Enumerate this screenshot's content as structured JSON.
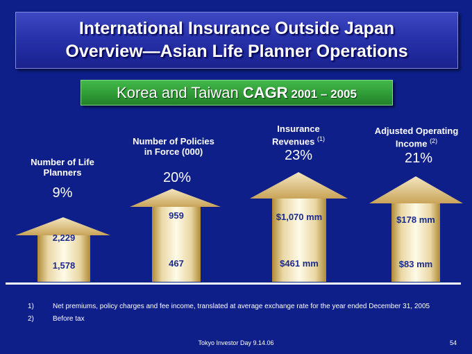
{
  "slide": {
    "title_line1": "International Insurance Outside Japan",
    "title_line2": "Overview—Asian Life Planner Operations",
    "subtitle_normal": "Korea and Taiwan ",
    "subtitle_bold": "CAGR",
    "subtitle_years": " 2001 – 2005"
  },
  "columns": [
    {
      "label_line1": "Number of Life",
      "label_line2": "Planners",
      "label_sup": "",
      "cagr": "9%",
      "value_2005": "2,229",
      "value_2001": "1,578"
    },
    {
      "label_line1": "Number of Policies",
      "label_line2": "in Force (000)",
      "label_sup": "",
      "cagr": "20%",
      "value_2005": "959",
      "value_2001": "467"
    },
    {
      "label_line1": "Insurance",
      "label_line2": "Revenues",
      "label_sup": "(1)",
      "cagr": "23%",
      "value_2005": "$1,070 mm",
      "value_2001": "$461 mm"
    },
    {
      "label_line1": "Adjusted Operating",
      "label_line2": "Income",
      "label_sup": "(2)",
      "cagr": "21%",
      "value_2005": "$178 mm",
      "value_2001": "$83 mm"
    }
  ],
  "footnotes": [
    {
      "num": "1)",
      "text": "Net premiums, policy charges and fee income, translated at average exchange rate for the year ended December 31, 2005"
    },
    {
      "num": "2)",
      "text": "Before tax"
    }
  ],
  "footer": {
    "event": "Tokyo Investor Day 9.14.06",
    "page": "54"
  },
  "colors": {
    "background": "#0e1f8a",
    "title_box": "#2630a8",
    "subtitle_box": "#2f9c36",
    "arrow_light": "#fffbe8",
    "arrow_dark": "#b08a36",
    "value_text": "#1b2a8c"
  }
}
